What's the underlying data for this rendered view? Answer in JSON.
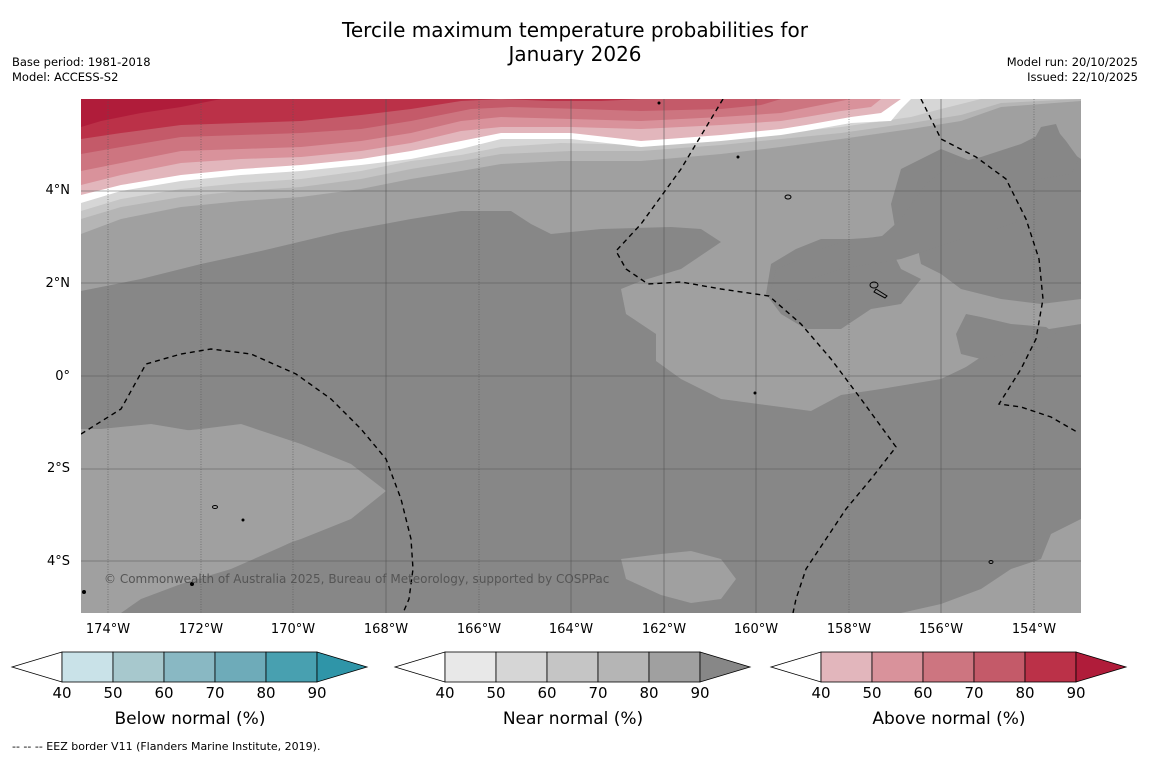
{
  "title_line1": "Tercile maximum temperature probabilities for",
  "title_line2": "January 2026",
  "base_period": "Base period: 1981-2018",
  "model": "Model: ACCESS-S2",
  "model_run": "Model run: 20/10/2025",
  "issued": "Issued: 22/10/2025",
  "copyright": "© Commonwealth of Australia 2025, Bureau of Meteorology, supported by COSPPac",
  "footer": "--  --  -- EEZ border V11 (Flanders Marine Institute, 2019).",
  "lat_labels": [
    "4°N",
    "2°N",
    "0°",
    "2°S",
    "4°S"
  ],
  "lon_labels": [
    "174°W",
    "172°W",
    "170°W",
    "168°W",
    "166°W",
    "164°W",
    "162°W",
    "160°W",
    "158°W",
    "156°W",
    "154°W"
  ],
  "colorbars": [
    {
      "title": "Below normal (%)",
      "ticks": [
        "40",
        "50",
        "60",
        "70",
        "80",
        "90"
      ],
      "colors": [
        "#ffffff",
        "#c9e2e8",
        "#a7c8cd",
        "#89b8c3",
        "#6eabb9",
        "#48a0b0",
        "#2f95a8"
      ]
    },
    {
      "title": "Near normal (%)",
      "ticks": [
        "40",
        "50",
        "60",
        "70",
        "80",
        "90"
      ],
      "colors": [
        "#ffffff",
        "#e8e8e8",
        "#d6d6d6",
        "#c5c5c5",
        "#b5b5b5",
        "#a0a0a0",
        "#878787"
      ]
    },
    {
      "title": "Above normal (%)",
      "ticks": [
        "40",
        "50",
        "60",
        "70",
        "80",
        "90"
      ],
      "colors": [
        "#ffffff",
        "#e2b6bc",
        "#d9929b",
        "#cd7580",
        "#c45a69",
        "#bb3148",
        "#b01c3a"
      ]
    }
  ]
}
